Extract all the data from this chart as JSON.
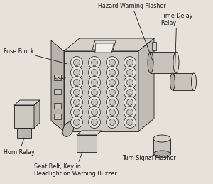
{
  "bg_color": "#e6e2da",
  "labels": {
    "fuse_block": "Fuse Block",
    "hazard": "Hazard Warning Flasher",
    "time_delay": "Time Delay\nRelay",
    "horn": "Horn Relay",
    "seat_belt": "Seat Belt, Key in\nHeadlight on Warning Buzzer",
    "turn_signal": "Turn Signal Flasher"
  },
  "font_size": 5.8,
  "line_color": "#1a1a1a",
  "top_face_color": "#d5d1c8",
  "left_face_color": "#b8b4ac",
  "front_face_color": "#cdc9c0",
  "right_face_color": "#c0bcb4",
  "connector_face_color": "#a8a49c",
  "fuse_slot_color": "#e2dfd8",
  "fuse_inner_color": "#c8c4bc",
  "cylinder_body": "#c8c4bc",
  "cylinder_top": "#d8d4cc",
  "cylinder_dark": "#b0ada5"
}
